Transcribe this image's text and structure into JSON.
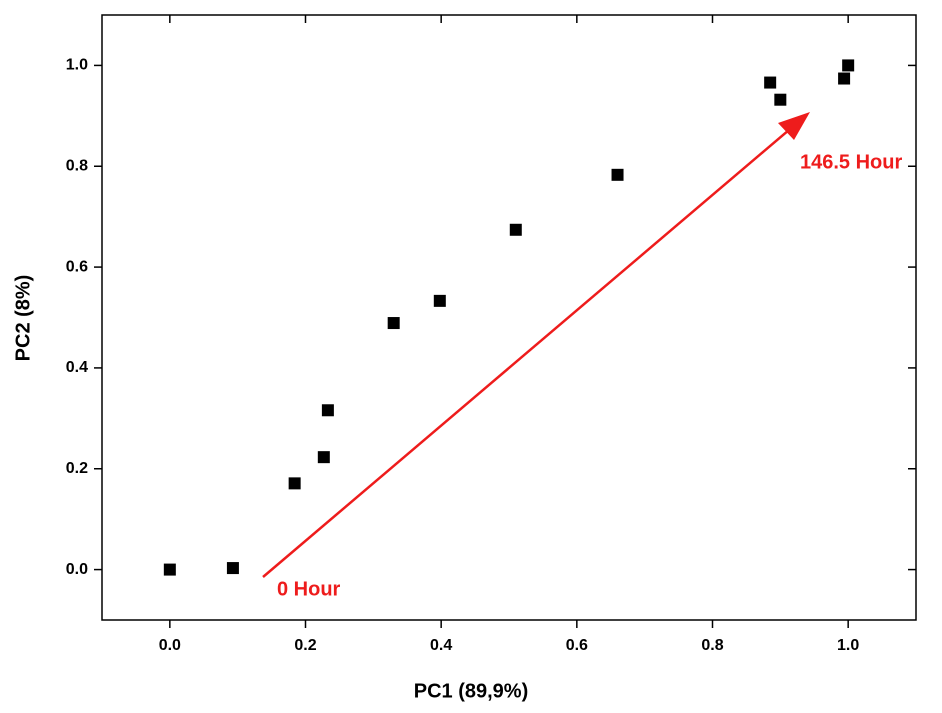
{
  "chart_data": {
    "type": "scatter",
    "x_label": "PC1 (89,9%)",
    "y_label": "PC2 (8%)",
    "annotations": [
      "0 Hour",
      "146.5 Hour"
    ],
    "x": [
      0,
      0.093,
      0.184,
      0.227,
      0.233,
      0.33,
      0.398,
      0.51,
      0.66,
      0.885,
      0.9,
      0.994,
      1.0
    ],
    "y": [
      0,
      0.003,
      0.171,
      0.223,
      0.316,
      0.489,
      0.533,
      0.674,
      0.783,
      0.966,
      0.932,
      0.974,
      1.0
    ],
    "color": "#000000",
    "annotation_color": "#ee1c1c",
    "xlim": [
      -0.1,
      1.1
    ],
    "ylim": [
      -0.1,
      1.1
    ],
    "xticks": [
      {
        "value": 0,
        "label": "0.0"
      },
      0.2,
      0.4,
      0.6,
      0.8,
      {
        "value": 1,
        "label": "1.0"
      }
    ],
    "yticks": [
      {
        "value": 0,
        "label": "0.0"
      },
      0.2,
      0.4,
      0.6,
      0.8,
      {
        "value": 1,
        "label": "1.0"
      }
    ]
  }
}
